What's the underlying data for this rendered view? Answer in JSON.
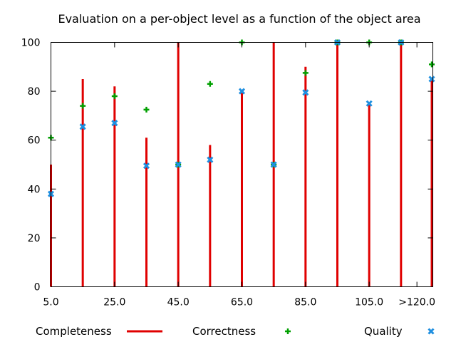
{
  "chart_data": {
    "type": "bar",
    "title": "Evaluation on a per-object level as a function of the object area",
    "xlabel": "",
    "ylabel": "",
    "ylim": [
      0,
      100
    ],
    "yticks": [
      0,
      20,
      40,
      60,
      80,
      100
    ],
    "xlim": [
      5,
      125
    ],
    "xtick_values": [
      5,
      25,
      45,
      65,
      85,
      105,
      120
    ],
    "xtick_labels": [
      "5.0",
      "25.0",
      "45.0",
      "65.0",
      "85.0",
      "105.0",
      ">120.0"
    ],
    "x": [
      5,
      15,
      25,
      35,
      45,
      55,
      65,
      75,
      85,
      95,
      105,
      115,
      125
    ],
    "series": [
      {
        "name": "Completeness",
        "style": "impulses",
        "color": "#e00000",
        "values": [
          50,
          85,
          82,
          61,
          100,
          58,
          80,
          100,
          90,
          100,
          75,
          100,
          85
        ]
      },
      {
        "name": "Correctness",
        "style": "points-plus",
        "color": "#00a000",
        "values": [
          61,
          74,
          78,
          72.5,
          50,
          83,
          100,
          50,
          87.5,
          100,
          100,
          100,
          91
        ]
      },
      {
        "name": "Quality",
        "style": "points-x",
        "color": "#1f8fe0",
        "values": [
          38,
          65.5,
          67,
          49.5,
          50,
          52,
          80,
          50,
          79.5,
          100,
          75,
          100,
          85
        ]
      }
    ],
    "legend_position": "bottom"
  }
}
